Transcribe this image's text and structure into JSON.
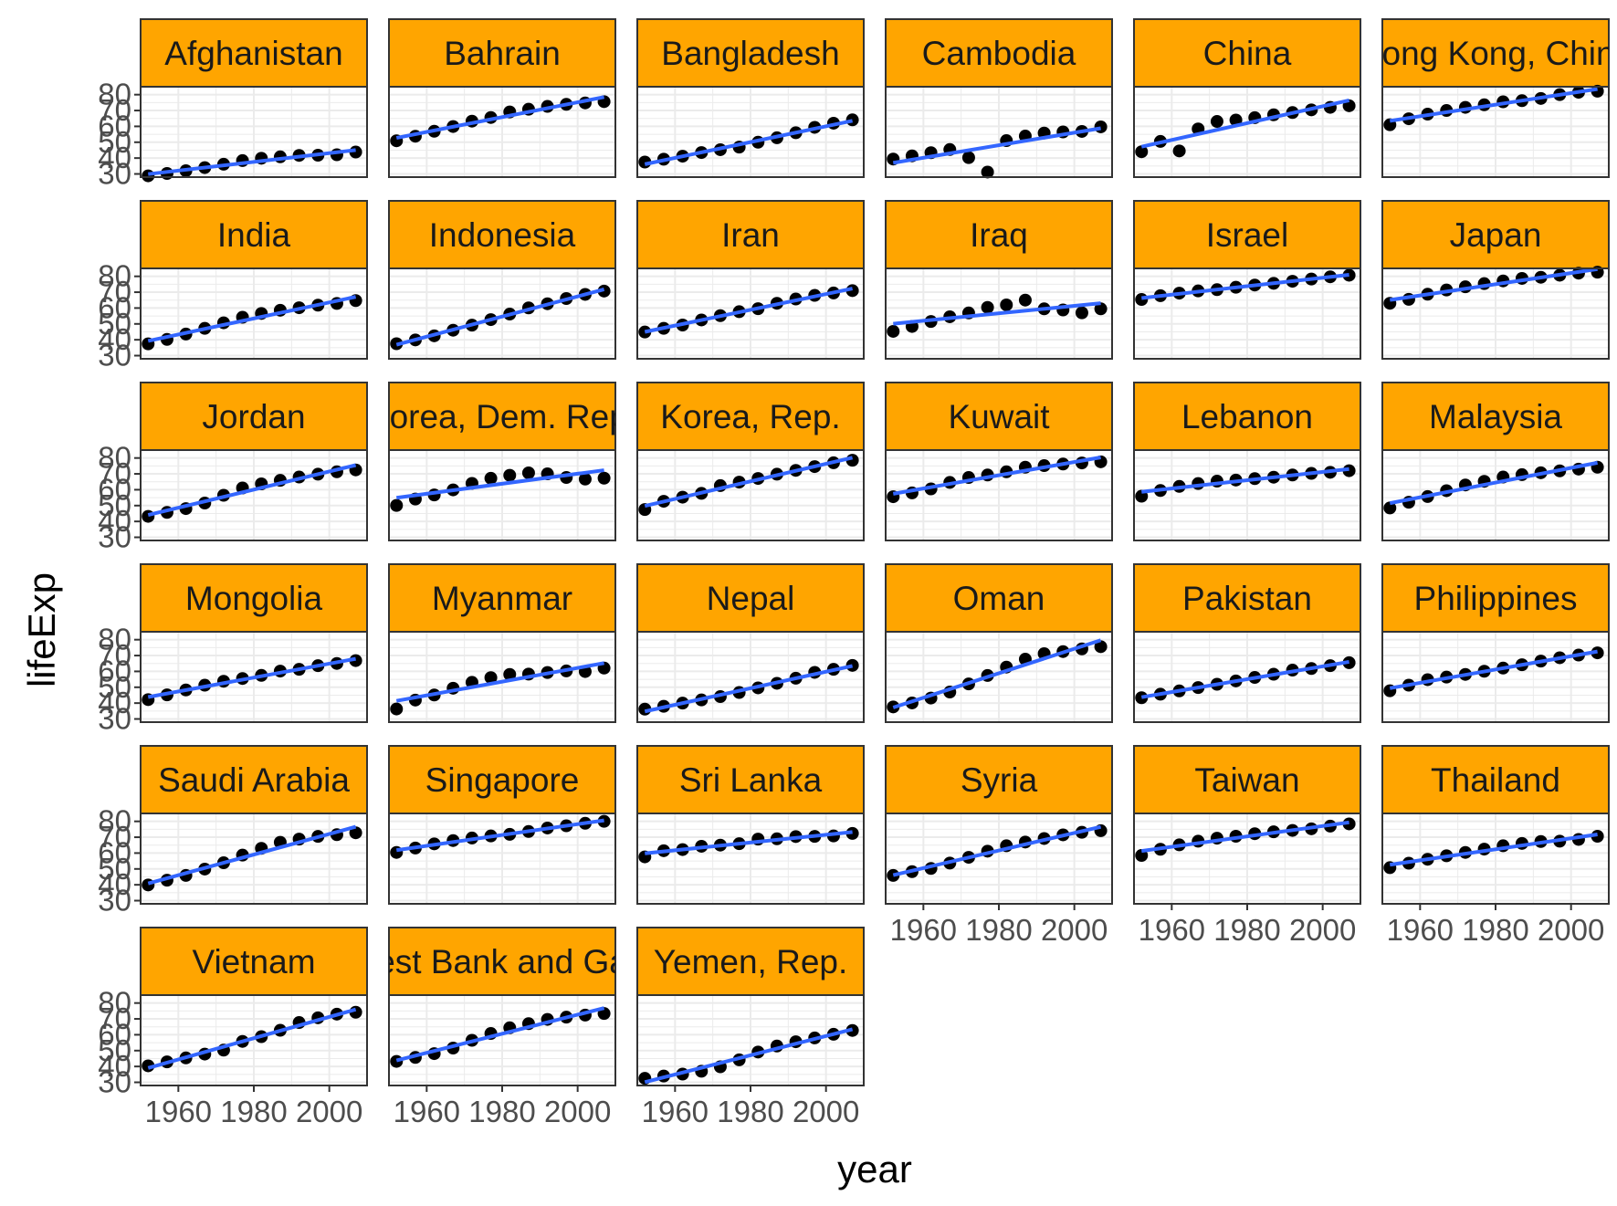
{
  "chart_data": {
    "type": "scatter",
    "layout": "facet_wrap 6 columns",
    "xlabel": "year",
    "ylabel": "lifeExp",
    "xlim": [
      1950,
      2010
    ],
    "ylim": [
      28,
      85
    ],
    "x_ticks": [
      1960,
      1980,
      2000
    ],
    "y_ticks": [
      30,
      40,
      50,
      60,
      70,
      80
    ],
    "grid": true,
    "legend": "none",
    "colors": {
      "strip_fill": "#FFA500",
      "point": "#000000",
      "fit_line": "#3366FF",
      "grid": "#EBEBEB",
      "panel_border": "#333333"
    },
    "x": [
      1952,
      1957,
      1962,
      1967,
      1972,
      1977,
      1982,
      1987,
      1992,
      1997,
      2002,
      2007
    ],
    "panels": [
      {
        "name": "Afghanistan",
        "label": "Afghanistan",
        "values": [
          28.8,
          30.3,
          32.0,
          34.0,
          36.1,
          38.4,
          39.9,
          40.8,
          41.7,
          41.8,
          42.1,
          43.8
        ]
      },
      {
        "name": "Bahrain",
        "label": "Bahrain",
        "values": [
          50.9,
          53.8,
          56.9,
          59.9,
          63.3,
          65.6,
          69.1,
          70.8,
          72.6,
          73.9,
          74.8,
          75.6
        ]
      },
      {
        "name": "Bangladesh",
        "label": "Bangladesh",
        "values": [
          37.5,
          39.3,
          41.2,
          43.5,
          45.3,
          46.9,
          50.0,
          52.8,
          56.0,
          59.4,
          62.0,
          64.1
        ]
      },
      {
        "name": "Cambodia",
        "label": "Cambodia",
        "values": [
          39.4,
          41.4,
          43.4,
          45.4,
          40.3,
          31.2,
          51.0,
          53.9,
          55.8,
          56.5,
          56.8,
          59.7
        ]
      },
      {
        "name": "China",
        "label": "China",
        "values": [
          44.0,
          50.5,
          44.5,
          58.4,
          63.1,
          64.0,
          65.5,
          67.3,
          68.7,
          70.4,
          72.0,
          73.0
        ]
      },
      {
        "name": "Hong Kong, China",
        "label": "Hong Kong, China",
        "values": [
          61.0,
          64.8,
          67.7,
          70.0,
          72.0,
          73.6,
          75.5,
          76.2,
          77.6,
          80.0,
          81.5,
          82.2
        ]
      },
      {
        "name": "India",
        "label": "India",
        "values": [
          37.4,
          40.2,
          43.6,
          47.2,
          50.7,
          54.2,
          56.6,
          58.6,
          60.2,
          61.8,
          62.9,
          64.7
        ]
      },
      {
        "name": "Indonesia",
        "label": "Indonesia",
        "values": [
          37.5,
          39.9,
          42.5,
          46.0,
          49.2,
          52.7,
          56.2,
          60.1,
          62.7,
          66.0,
          68.6,
          70.7
        ]
      },
      {
        "name": "Iran",
        "label": "Iran",
        "values": [
          44.9,
          47.2,
          49.3,
          52.5,
          55.2,
          57.7,
          59.6,
          63.0,
          65.7,
          68.0,
          69.5,
          71.0
        ]
      },
      {
        "name": "Iraq",
        "label": "Iraq",
        "values": [
          45.3,
          48.4,
          51.5,
          54.5,
          56.9,
          60.4,
          62.0,
          65.0,
          59.5,
          58.8,
          57.0,
          59.5
        ]
      },
      {
        "name": "Israel",
        "label": "Israel",
        "values": [
          65.4,
          67.8,
          69.4,
          70.8,
          71.6,
          73.1,
          74.5,
          75.6,
          76.9,
          78.3,
          79.7,
          80.7
        ]
      },
      {
        "name": "Japan",
        "label": "Japan",
        "values": [
          63.0,
          65.5,
          68.7,
          71.4,
          73.4,
          75.4,
          77.1,
          78.7,
          79.4,
          80.7,
          82.0,
          82.6
        ]
      },
      {
        "name": "Jordan",
        "label": "Jordan",
        "values": [
          43.2,
          45.7,
          48.1,
          51.6,
          56.5,
          61.1,
          63.7,
          65.9,
          68.0,
          69.8,
          71.3,
          72.5
        ]
      },
      {
        "name": "Korea, Dem. Rep.",
        "label": "Korea, Dem. Rep.",
        "values": [
          50.1,
          54.1,
          56.7,
          59.9,
          64.0,
          67.2,
          69.1,
          70.6,
          70.0,
          67.7,
          66.7,
          67.3
        ]
      },
      {
        "name": "Korea, Rep.",
        "label": "Korea, Rep.",
        "values": [
          47.5,
          52.7,
          55.3,
          57.7,
          62.6,
          64.8,
          67.1,
          69.8,
          72.2,
          74.6,
          77.0,
          78.6
        ]
      },
      {
        "name": "Kuwait",
        "label": "Kuwait",
        "values": [
          55.6,
          58.0,
          60.5,
          64.6,
          67.7,
          69.3,
          71.3,
          74.2,
          75.2,
          76.2,
          76.9,
          77.6
        ]
      },
      {
        "name": "Lebanon",
        "label": "Lebanon",
        "values": [
          55.9,
          59.5,
          62.1,
          63.9,
          65.4,
          66.1,
          67.0,
          67.9,
          69.3,
          70.3,
          71.0,
          72.0
        ]
      },
      {
        "name": "Malaysia",
        "label": "Malaysia",
        "values": [
          48.5,
          52.1,
          55.7,
          59.4,
          63.0,
          65.3,
          68.0,
          69.5,
          70.7,
          71.9,
          73.0,
          74.2
        ]
      },
      {
        "name": "Mongolia",
        "label": "Mongolia",
        "values": [
          42.2,
          45.2,
          48.3,
          51.3,
          53.8,
          55.5,
          57.5,
          60.2,
          61.3,
          63.6,
          65.0,
          66.8
        ]
      },
      {
        "name": "Myanmar",
        "label": "Myanmar",
        "values": [
          36.3,
          41.9,
          45.1,
          49.4,
          53.1,
          56.1,
          58.1,
          58.3,
          59.3,
          60.3,
          59.9,
          62.1
        ]
      },
      {
        "name": "Nepal",
        "label": "Nepal",
        "values": [
          36.2,
          38.0,
          40.0,
          42.0,
          44.1,
          46.7,
          49.6,
          52.5,
          55.7,
          59.4,
          61.3,
          63.8
        ]
      },
      {
        "name": "Oman",
        "label": "Oman",
        "values": [
          37.6,
          40.1,
          43.2,
          46.99,
          52.1,
          57.4,
          62.7,
          67.7,
          71.2,
          72.5,
          74.2,
          75.6
        ]
      },
      {
        "name": "Pakistan",
        "label": "Pakistan",
        "values": [
          43.4,
          45.6,
          47.7,
          49.8,
          51.9,
          54.0,
          56.2,
          58.2,
          60.8,
          61.8,
          63.6,
          65.5
        ]
      },
      {
        "name": "Philippines",
        "label": "Philippines",
        "values": [
          47.8,
          51.3,
          54.8,
          56.4,
          58.1,
          60.1,
          62.1,
          64.2,
          66.5,
          68.6,
          70.3,
          71.7
        ]
      },
      {
        "name": "Saudi Arabia",
        "label": "Saudi Arabia",
        "values": [
          39.9,
          42.9,
          45.9,
          49.9,
          53.9,
          58.7,
          63.0,
          66.8,
          68.8,
          70.5,
          71.6,
          72.8
        ]
      },
      {
        "name": "Singapore",
        "label": "Singapore",
        "values": [
          60.4,
          63.2,
          65.8,
          67.9,
          69.5,
          70.8,
          71.8,
          73.6,
          75.8,
          77.2,
          78.8,
          80.0
        ]
      },
      {
        "name": "Sri Lanka",
        "label": "Sri Lanka",
        "values": [
          57.6,
          61.5,
          62.2,
          64.3,
          65.0,
          65.9,
          68.8,
          69.0,
          70.4,
          70.5,
          70.8,
          72.4
        ]
      },
      {
        "name": "Syria",
        "label": "Syria",
        "values": [
          45.9,
          48.3,
          50.3,
          53.7,
          57.3,
          61.2,
          64.6,
          66.97,
          69.2,
          71.5,
          73.1,
          74.1
        ]
      },
      {
        "name": "Taiwan",
        "label": "Taiwan",
        "values": [
          58.5,
          62.4,
          65.2,
          67.5,
          69.4,
          70.6,
          72.2,
          73.4,
          74.3,
          75.3,
          76.99,
          78.4
        ]
      },
      {
        "name": "Thailand",
        "label": "Thailand",
        "values": [
          50.8,
          53.6,
          56.1,
          58.3,
          60.4,
          62.5,
          64.6,
          66.1,
          67.3,
          67.5,
          68.6,
          70.6
        ]
      },
      {
        "name": "Vietnam",
        "label": "Vietnam",
        "values": [
          40.4,
          42.9,
          45.4,
          47.8,
          50.3,
          55.8,
          58.8,
          62.8,
          67.7,
          70.7,
          73.0,
          74.2
        ]
      },
      {
        "name": "West Bank and Gaza",
        "label": "est Bank and Ga",
        "values": [
          43.2,
          45.7,
          48.1,
          51.6,
          56.5,
          60.8,
          64.4,
          67.0,
          69.7,
          71.1,
          72.4,
          73.4
        ]
      },
      {
        "name": "Yemen, Rep.",
        "label": "Yemen, Rep.",
        "values": [
          32.5,
          33.97,
          35.2,
          36.98,
          39.8,
          44.2,
          49.1,
          52.9,
          55.6,
          58.0,
          60.3,
          62.7
        ]
      }
    ]
  }
}
